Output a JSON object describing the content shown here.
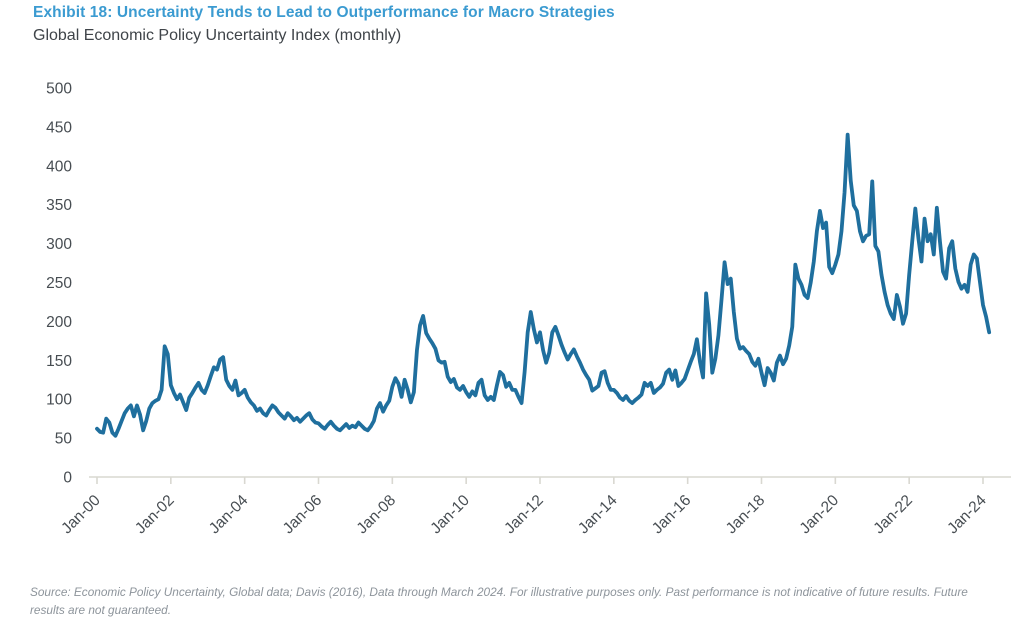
{
  "header": {
    "exhibit_title": "Exhibit 18: Uncertainty Tends to Lead to Outperformance for Macro Strategies",
    "subtitle": "Global Economic Policy Uncertainty Index (monthly)"
  },
  "source_note": "Source: Economic Policy Uncertainty, Global data; Davis (2016), Data through March 2024. For illustrative purposes only. Past performance is not indicative of future results. Future results are not guaranteed.",
  "colors": {
    "title_blue": "#3b9bd1",
    "line_blue": "#1f6f9e",
    "axis_gray": "#d9d8d1",
    "tick_label_gray": "#474d52",
    "source_gray": "#8d949b"
  },
  "chart_data": {
    "type": "line",
    "title": "Global Economic Policy Uncertainty Index (monthly)",
    "xlabel": "",
    "ylabel": "",
    "ylim": [
      0,
      500
    ],
    "y_ticks": [
      0,
      50,
      100,
      150,
      200,
      250,
      300,
      350,
      400,
      450,
      500
    ],
    "x_tick_labels": [
      "Jan-00",
      "Jan-02",
      "Jan-04",
      "Jan-06",
      "Jan-08",
      "Jan-10",
      "Jan-12",
      "Jan-14",
      "Jan-16",
      "Jan-18",
      "Jan-20",
      "Jan-22",
      "Jan-24"
    ],
    "months_per_x_tick": 24,
    "x_start": "Jan-2000",
    "x_end": "Mar-2024",
    "grid": false,
    "legend": "none",
    "series": [
      {
        "name": "Global Economic Policy Uncertainty Index",
        "frequency": "monthly",
        "values": [
          62,
          58,
          57,
          75,
          70,
          57,
          53,
          62,
          72,
          82,
          88,
          92,
          78,
          92,
          80,
          60,
          72,
          88,
          95,
          98,
          100,
          112,
          168,
          158,
          118,
          108,
          100,
          106,
          96,
          86,
          102,
          108,
          115,
          121,
          112,
          108,
          118,
          130,
          141,
          138,
          151,
          154,
          125,
          117,
          112,
          124,
          105,
          108,
          112,
          102,
          96,
          92,
          85,
          88,
          82,
          79,
          86,
          92,
          89,
          83,
          79,
          75,
          82,
          78,
          73,
          76,
          71,
          75,
          79,
          82,
          74,
          70,
          69,
          65,
          62,
          67,
          71,
          66,
          62,
          60,
          64,
          68,
          63,
          66,
          64,
          70,
          66,
          62,
          60,
          65,
          72,
          88,
          95,
          84,
          92,
          98,
          116,
          127,
          120,
          103,
          125,
          112,
          96,
          109,
          163,
          195,
          207,
          185,
          178,
          172,
          165,
          150,
          147,
          148,
          129,
          122,
          126,
          115,
          112,
          117,
          109,
          103,
          110,
          105,
          121,
          125,
          105,
          99,
          103,
          99,
          118,
          135,
          131,
          116,
          121,
          112,
          112,
          103,
          95,
          135,
          186,
          212,
          190,
          173,
          186,
          163,
          147,
          160,
          186,
          193,
          182,
          170,
          160,
          151,
          158,
          164,
          155,
          147,
          138,
          131,
          125,
          111,
          114,
          117,
          134,
          136,
          121,
          112,
          112,
          108,
          102,
          99,
          104,
          98,
          95,
          99,
          102,
          106,
          121,
          117,
          121,
          108,
          112,
          115,
          120,
          134,
          138,
          125,
          137,
          117,
          121,
          126,
          137,
          148,
          158,
          177,
          148,
          128,
          236,
          196,
          134,
          152,
          182,
          228,
          276,
          248,
          255,
          212,
          178,
          165,
          167,
          162,
          158,
          148,
          143,
          152,
          134,
          118,
          140,
          134,
          124,
          147,
          156,
          145,
          152,
          169,
          193,
          273,
          255,
          247,
          234,
          230,
          250,
          277,
          316,
          342,
          320,
          327,
          270,
          262,
          273,
          286,
          316,
          366,
          440,
          381,
          349,
          342,
          316,
          303,
          310,
          312,
          380,
          297,
          290,
          260,
          238,
          221,
          210,
          203,
          234,
          219,
          197,
          210,
          260,
          303,
          345,
          307,
          277,
          332,
          303,
          312,
          286,
          346,
          303,
          264,
          255,
          294,
          303,
          268,
          251,
          242,
          247,
          238,
          273,
          286,
          281,
          251,
          221,
          206,
          186
        ]
      }
    ]
  }
}
